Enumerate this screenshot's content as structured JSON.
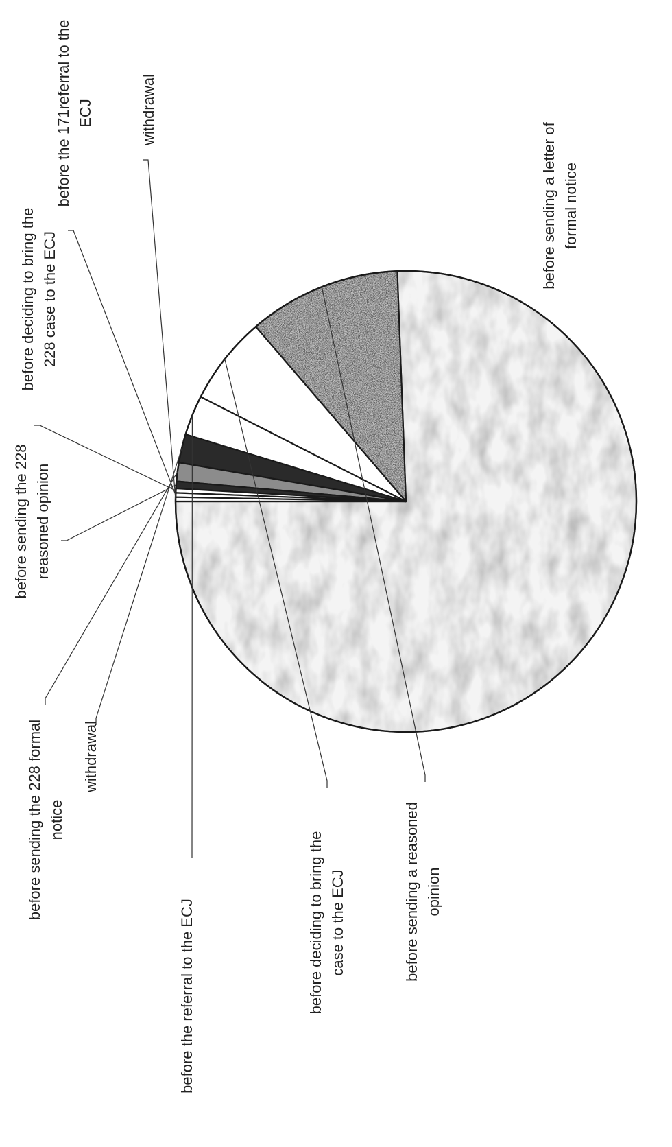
{
  "chart_data": {
    "type": "pie",
    "title": "",
    "slices": [
      {
        "label": "before sending a letter of formal notice",
        "value": 75.6,
        "fill": "paper"
      },
      {
        "label": "before sending a reasoned opinion",
        "value": 10.7,
        "fill": "dark-noise"
      },
      {
        "label": "before deciding to bring the case to the ECJ",
        "value": 6.2,
        "fill": "#ffffff"
      },
      {
        "label": "before the referral to the ECJ",
        "value": 2.8,
        "fill": "#ffffff"
      },
      {
        "label": "withdrawal",
        "value": 2.0,
        "fill": "#2a2a2a"
      },
      {
        "label": "before sending the 228 formal notice",
        "value": 1.3,
        "fill": "#8c8c8c"
      },
      {
        "label": "before sending the 228 reasoned opinion",
        "value": 0.5,
        "fill": "#2a2a2a"
      },
      {
        "label": "before deciding to bring the 228 case to the ECJ",
        "value": 0.3,
        "fill": "#ffffff"
      },
      {
        "label": "before the 171referral to the ECJ",
        "value": 0.3,
        "fill": "#ffffff"
      },
      {
        "label": "withdrawal",
        "value": 0.3,
        "fill": "#ffffff"
      }
    ],
    "legend": "none"
  }
}
